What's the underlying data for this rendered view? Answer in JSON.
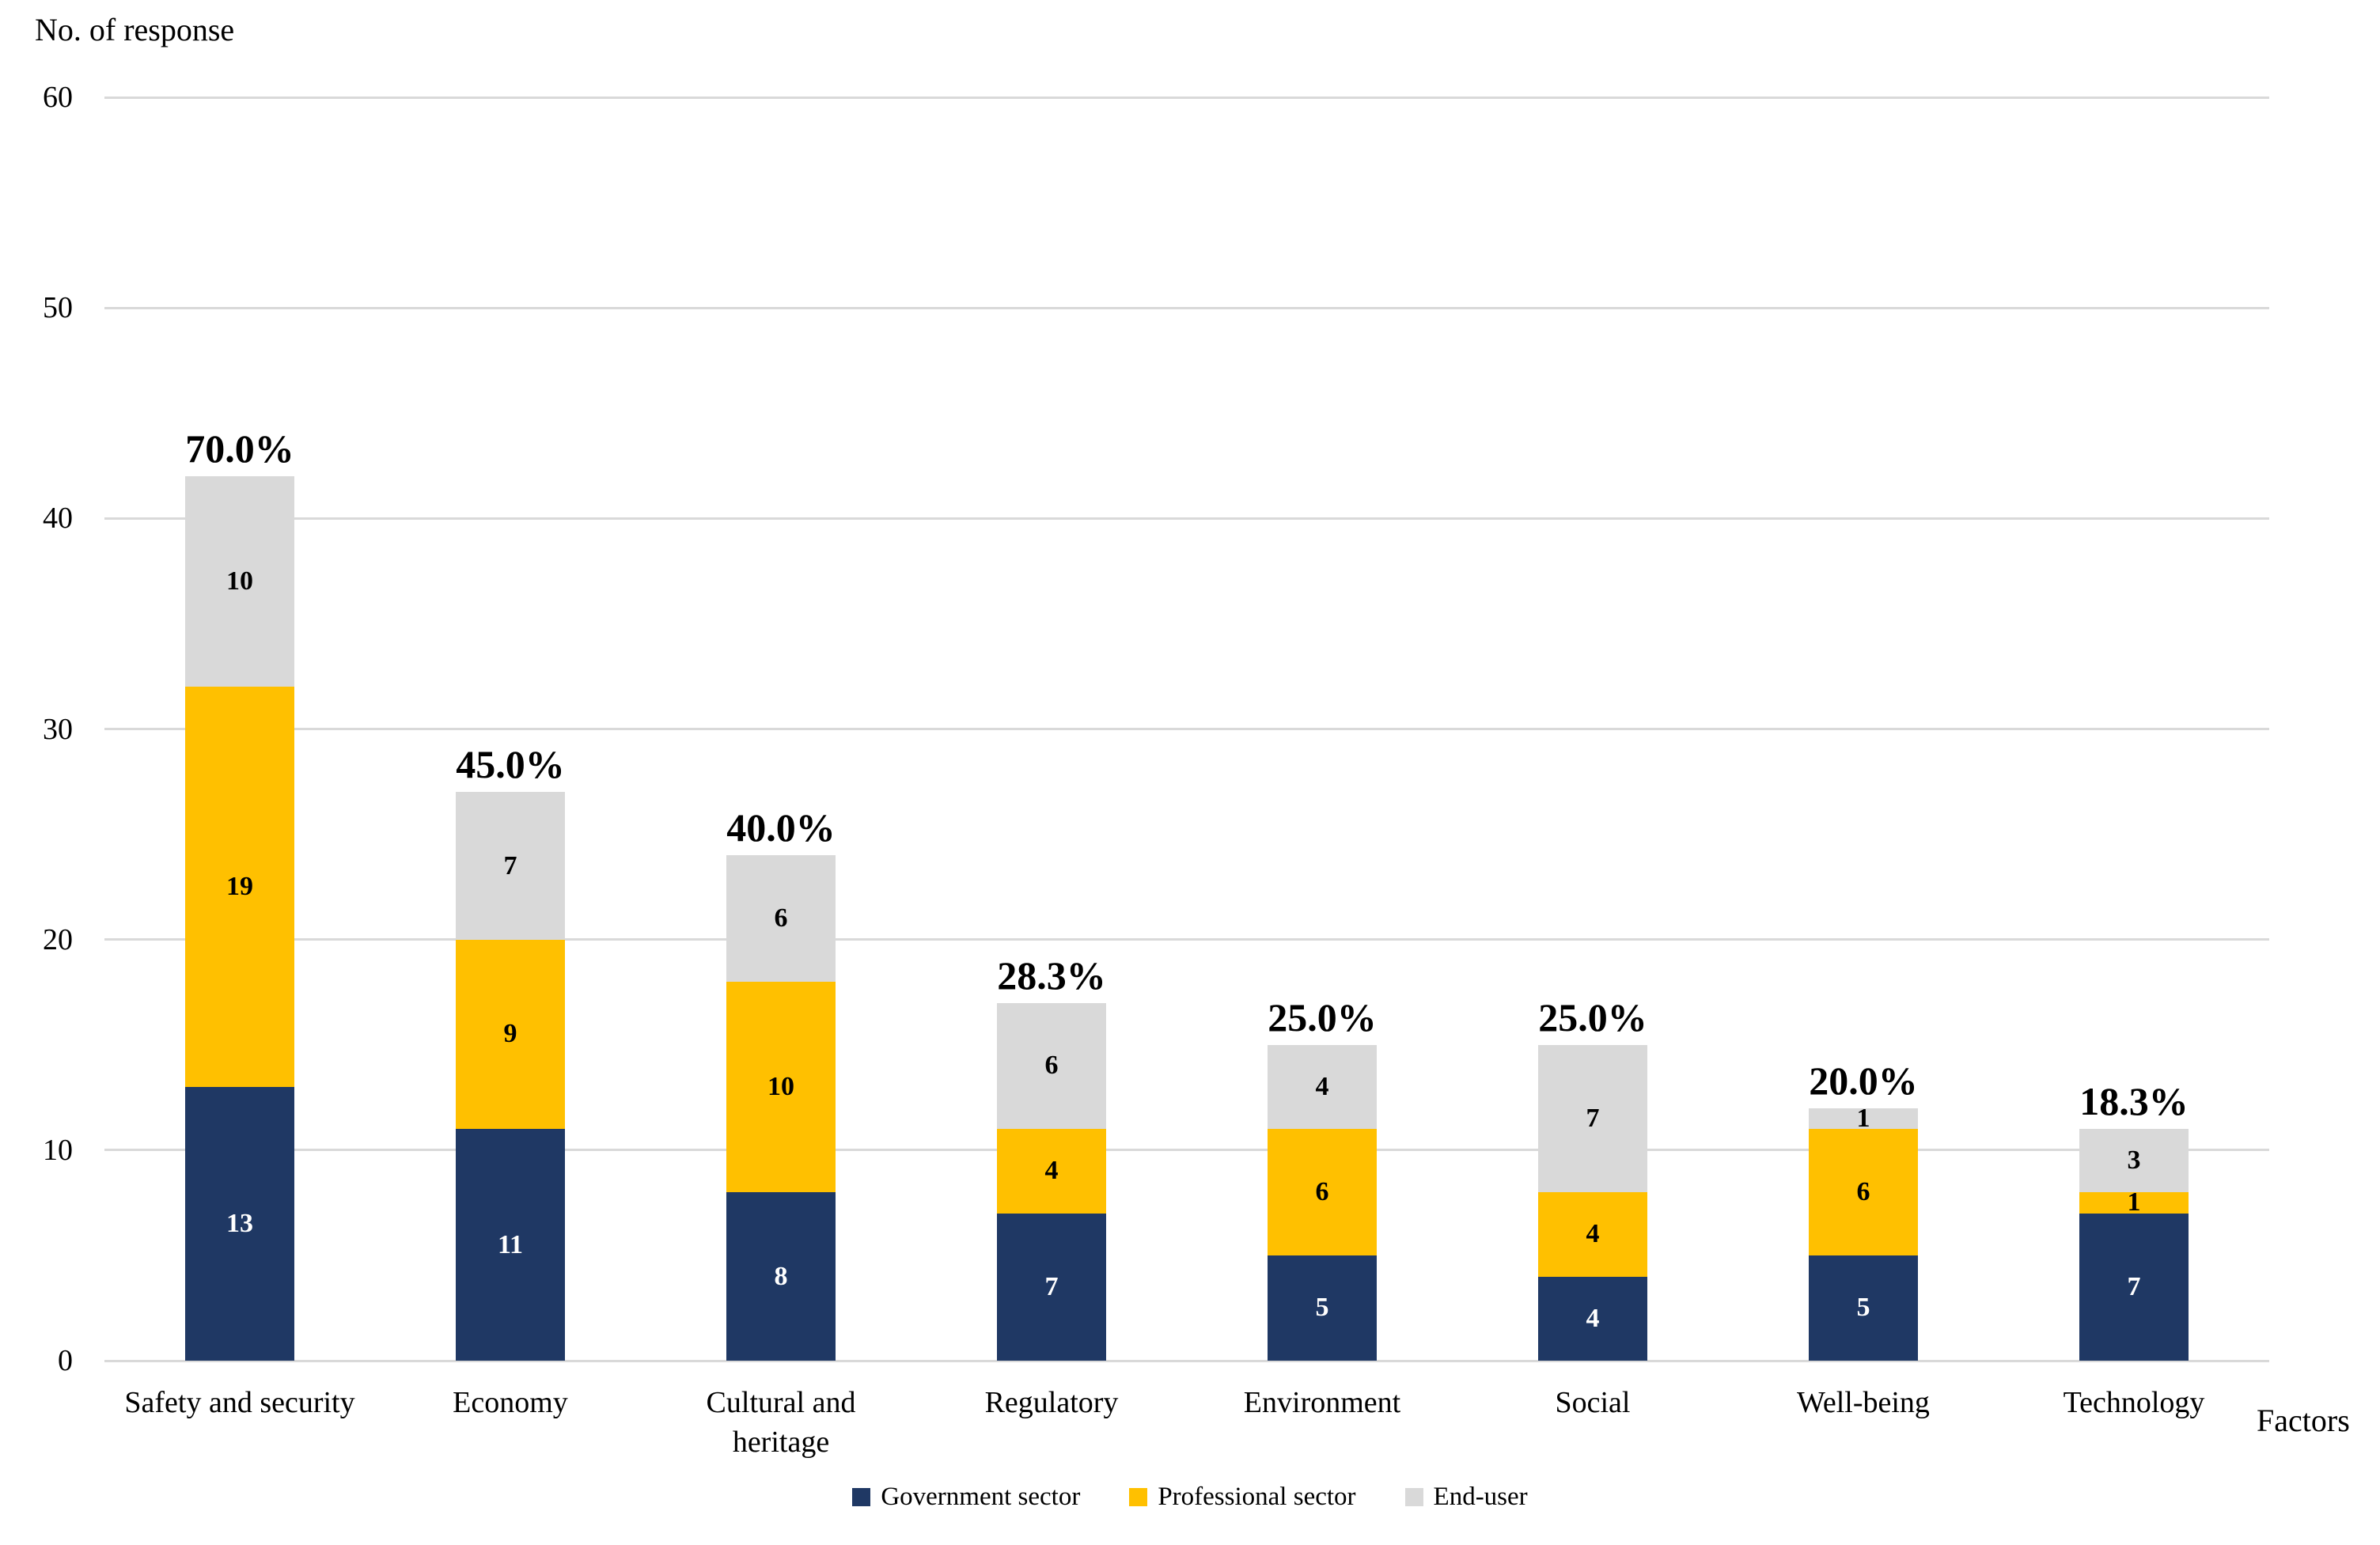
{
  "chart_data": {
    "type": "bar",
    "stacked": true,
    "title": "",
    "ylabel": "No. of response",
    "xlabel": "Factors",
    "ylim": [
      0,
      60
    ],
    "y_ticks": [
      0,
      10,
      20,
      30,
      40,
      50,
      60
    ],
    "grid": true,
    "legend_position": "bottom",
    "categories": [
      "Safety and security",
      "Economy",
      "Cultural and heritage",
      "Regulatory",
      "Environment",
      "Social",
      "Well-being",
      "Technology"
    ],
    "category_display": [
      "Safety and security",
      "Economy",
      "Cultural and\nheritage",
      "Regulatory",
      "Environment",
      "Social",
      "Well-being",
      "Technology"
    ],
    "series": [
      {
        "name": "Government sector",
        "color": "#1F3864",
        "label_color": "#FFFFFF",
        "values": [
          13,
          11,
          8,
          7,
          5,
          4,
          5,
          7
        ]
      },
      {
        "name": "Professional sector",
        "color": "#FFC000",
        "label_color": "#000000",
        "values": [
          19,
          9,
          10,
          4,
          6,
          4,
          6,
          1
        ]
      },
      {
        "name": "End-user",
        "color": "#D9D9D9",
        "label_color": "#000000",
        "values": [
          10,
          7,
          6,
          6,
          4,
          7,
          1,
          3
        ]
      }
    ],
    "totals": [
      42,
      27,
      24,
      17,
      15,
      15,
      12,
      11
    ],
    "total_labels": [
      "70.0%",
      "45.0%",
      "40.0%",
      "28.3%",
      "25.0%",
      "25.0%",
      "20.0%",
      "18.3%"
    ],
    "colors": {
      "gridline": "#D9D9D9",
      "text": "#000000",
      "background": "#FFFFFF"
    }
  }
}
